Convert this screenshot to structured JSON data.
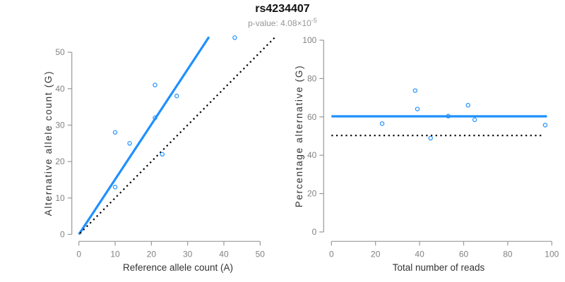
{
  "header": {
    "title": "rs4234407",
    "p_value_text": "p-value: 4.08×10",
    "p_value_exponent": "-5"
  },
  "colors": {
    "accent_blue": "#1E90FF",
    "reference_black": "#000000",
    "axis_line": "#999999",
    "tick_label": "#828282",
    "axis_title": "#333333",
    "title_text": "#111111",
    "subtitle_text": "#969696"
  },
  "chart_data": [
    {
      "type": "scatter",
      "title": "rs4234407",
      "xlabel": "Reference allele count (A)",
      "ylabel": "Alternative allele count (G)",
      "xlim": [
        0,
        50
      ],
      "ylim": [
        0,
        50
      ],
      "xticks": [
        0,
        10,
        20,
        30,
        40,
        50
      ],
      "yticks": [
        0,
        10,
        20,
        30,
        40,
        50
      ],
      "grid": false,
      "legend": "none",
      "points": [
        [
          10,
          13
        ],
        [
          10,
          28
        ],
        [
          14,
          25
        ],
        [
          21,
          32
        ],
        [
          21,
          41
        ],
        [
          23,
          22
        ],
        [
          27,
          38
        ],
        [
          43,
          54
        ]
      ],
      "lines": [
        {
          "name": "fit-line",
          "style": "solid",
          "color": "#1E90FF",
          "width": 3.2,
          "from": [
            0,
            0
          ],
          "to": [
            35.9,
            54.2
          ]
        },
        {
          "name": "identity-line",
          "style": "dotted",
          "color": "#000000",
          "width": 2.2,
          "from": [
            0.3,
            0.3
          ],
          "to": [
            54.2,
            54.2
          ]
        }
      ]
    },
    {
      "type": "scatter",
      "title": "",
      "xlabel": "Total number of reads",
      "ylabel": "Percentage alternative (G)",
      "xlim": [
        0,
        100
      ],
      "ylim": [
        0,
        100
      ],
      "xticks": [
        0,
        20,
        40,
        60,
        80,
        100
      ],
      "yticks": [
        0,
        20,
        40,
        60,
        80,
        100
      ],
      "grid": false,
      "legend": "none",
      "points": [
        [
          23,
          56.5
        ],
        [
          38,
          73.7
        ],
        [
          39,
          64.1
        ],
        [
          45,
          48.9
        ],
        [
          53,
          60.4
        ],
        [
          62,
          66.1
        ],
        [
          65,
          58.5
        ],
        [
          97,
          55.7
        ]
      ],
      "lines": [
        {
          "name": "mean-percentage-line",
          "style": "solid",
          "color": "#1E90FF",
          "width": 3.2,
          "from": [
            0,
            60.3
          ],
          "to": [
            97.8,
            60.3
          ]
        },
        {
          "name": "fifty-percent-line",
          "style": "dotted",
          "color": "#000000",
          "width": 2.2,
          "from": [
            0,
            50.3
          ],
          "to": [
            96,
            50.3
          ]
        }
      ]
    }
  ]
}
